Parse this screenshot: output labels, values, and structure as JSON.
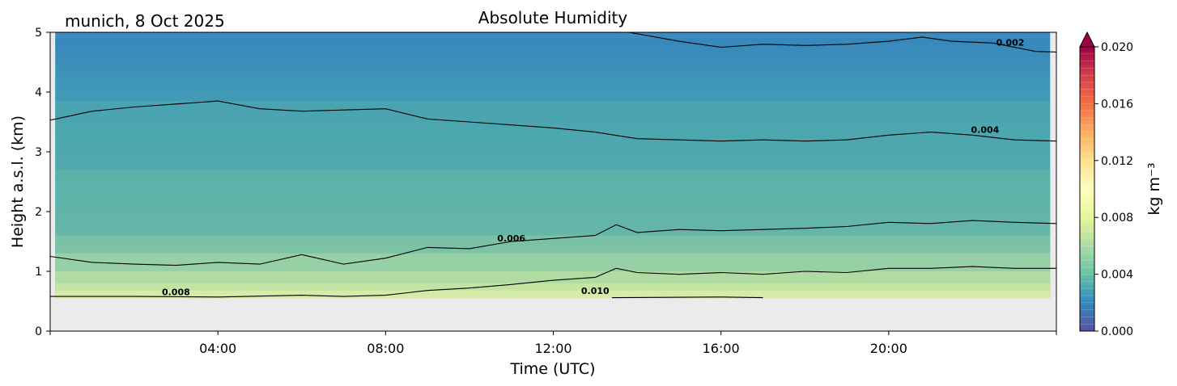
{
  "chart_data": {
    "type": "heatmap",
    "location_label": "munich, 8 Oct 2025",
    "title": "Absolute Humidity",
    "xlabel": "Time (UTC)",
    "ylabel": "Height a.s.l. (km)",
    "x_range_hours": [
      0,
      24
    ],
    "y_range_km": [
      0,
      5
    ],
    "x_ticks": [
      {
        "h": 4,
        "label": "04:00"
      },
      {
        "h": 8,
        "label": "08:00"
      },
      {
        "h": 12,
        "label": "12:00"
      },
      {
        "h": 16,
        "label": "16:00"
      },
      {
        "h": 20,
        "label": "20:00"
      }
    ],
    "y_ticks": [
      {
        "v": 0,
        "label": "0"
      },
      {
        "v": 1,
        "label": "1"
      },
      {
        "v": 2,
        "label": "2"
      },
      {
        "v": 3,
        "label": "3"
      },
      {
        "v": 4,
        "label": "4"
      },
      {
        "v": 5,
        "label": "5"
      }
    ],
    "no_data_below_km": 0.55,
    "colorbar": {
      "label": "kg m⁻³",
      "colormap": "Spectral_r",
      "range": [
        0.0,
        0.02
      ],
      "extend": "max",
      "ticks": [
        "0.000",
        "0.004",
        "0.008",
        "0.012",
        "0.016",
        "0.020"
      ]
    },
    "contours": [
      {
        "level": "0.002",
        "label": "0.002",
        "points": [
          [
            13.8,
            5.0
          ],
          [
            15.0,
            4.85
          ],
          [
            16.0,
            4.75
          ],
          [
            17.0,
            4.8
          ],
          [
            18.0,
            4.78
          ],
          [
            19.0,
            4.8
          ],
          [
            20.0,
            4.85
          ],
          [
            20.8,
            4.92
          ],
          [
            21.5,
            4.85
          ],
          [
            22.5,
            4.82
          ],
          [
            23.5,
            4.68
          ],
          [
            24.0,
            4.67
          ]
        ]
      },
      {
        "level": "0.004",
        "label": "0.004",
        "points": [
          [
            0.0,
            3.53
          ],
          [
            1.0,
            3.68
          ],
          [
            2.0,
            3.75
          ],
          [
            3.0,
            3.8
          ],
          [
            4.0,
            3.85
          ],
          [
            5.0,
            3.72
          ],
          [
            6.0,
            3.68
          ],
          [
            7.0,
            3.7
          ],
          [
            8.0,
            3.72
          ],
          [
            9.0,
            3.55
          ],
          [
            10.0,
            3.5
          ],
          [
            11.0,
            3.45
          ],
          [
            12.0,
            3.4
          ],
          [
            13.0,
            3.33
          ],
          [
            14.0,
            3.22
          ],
          [
            15.0,
            3.2
          ],
          [
            16.0,
            3.18
          ],
          [
            17.0,
            3.2
          ],
          [
            18.0,
            3.18
          ],
          [
            19.0,
            3.2
          ],
          [
            20.0,
            3.28
          ],
          [
            21.0,
            3.33
          ],
          [
            22.0,
            3.28
          ],
          [
            23.0,
            3.2
          ],
          [
            24.0,
            3.18
          ]
        ]
      },
      {
        "level": "0.006",
        "label": "0.006",
        "points": [
          [
            0.0,
            1.25
          ],
          [
            1.0,
            1.15
          ],
          [
            2.0,
            1.12
          ],
          [
            3.0,
            1.1
          ],
          [
            4.0,
            1.15
          ],
          [
            5.0,
            1.12
          ],
          [
            6.0,
            1.28
          ],
          [
            6.5,
            1.2
          ],
          [
            7.0,
            1.12
          ],
          [
            8.0,
            1.22
          ],
          [
            9.0,
            1.4
          ],
          [
            10.0,
            1.38
          ],
          [
            11.0,
            1.5
          ],
          [
            12.0,
            1.55
          ],
          [
            13.0,
            1.6
          ],
          [
            13.5,
            1.78
          ],
          [
            14.0,
            1.65
          ],
          [
            15.0,
            1.7
          ],
          [
            16.0,
            1.68
          ],
          [
            17.0,
            1.7
          ],
          [
            18.0,
            1.72
          ],
          [
            19.0,
            1.75
          ],
          [
            20.0,
            1.82
          ],
          [
            21.0,
            1.8
          ],
          [
            22.0,
            1.85
          ],
          [
            23.0,
            1.82
          ],
          [
            24.0,
            1.8
          ]
        ]
      },
      {
        "level": "0.008",
        "label": "0.008",
        "points": [
          [
            0.0,
            0.58
          ],
          [
            2.0,
            0.58
          ],
          [
            4.0,
            0.57
          ],
          [
            6.0,
            0.6
          ],
          [
            7.0,
            0.58
          ],
          [
            8.0,
            0.6
          ],
          [
            9.0,
            0.68
          ],
          [
            10.0,
            0.72
          ],
          [
            11.0,
            0.78
          ],
          [
            12.0,
            0.85
          ],
          [
            13.0,
            0.9
          ],
          [
            13.5,
            1.05
          ],
          [
            14.0,
            0.98
          ],
          [
            15.0,
            0.95
          ],
          [
            16.0,
            0.98
          ],
          [
            17.0,
            0.95
          ],
          [
            18.0,
            1.0
          ],
          [
            19.0,
            0.98
          ],
          [
            20.0,
            1.05
          ],
          [
            21.0,
            1.05
          ],
          [
            22.0,
            1.08
          ],
          [
            23.0,
            1.05
          ],
          [
            24.0,
            1.05
          ]
        ]
      },
      {
        "level": "0.010",
        "label": "0.010",
        "points": [
          [
            13.4,
            0.56
          ],
          [
            16.0,
            0.57
          ],
          [
            17.0,
            0.56
          ]
        ]
      }
    ]
  }
}
